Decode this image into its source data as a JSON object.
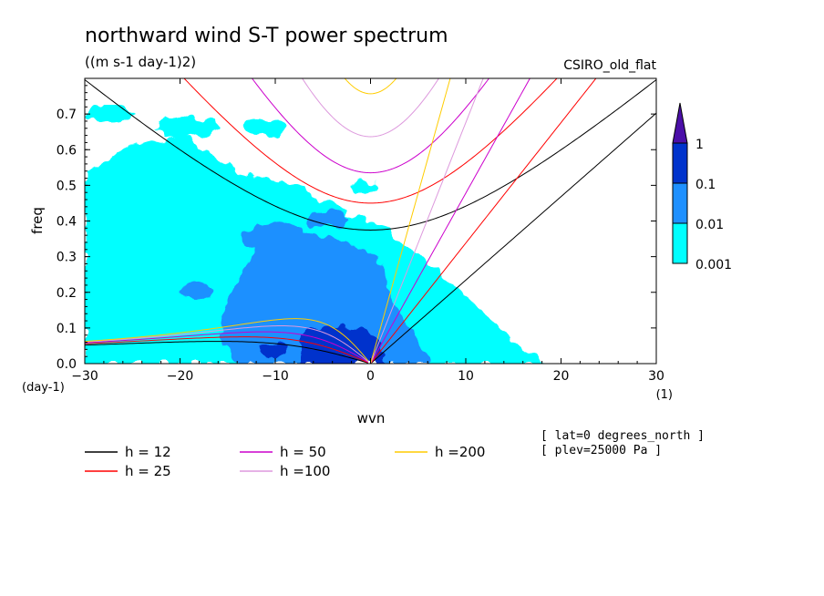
{
  "chart_data": {
    "type": "heatmap",
    "title": "northward wind S-T power spectrum",
    "units_label": "((m s-1 day-1)2)",
    "model_label": "CSIRO_old_flat",
    "xlabel": "wvn",
    "ylabel": "freq",
    "x_unit_label": "(1)",
    "y_unit_label": "(day-1)",
    "xlim": [
      -30,
      30
    ],
    "ylim": [
      0,
      0.8
    ],
    "x_ticks": [
      -30,
      -20,
      -10,
      0,
      10,
      20,
      30
    ],
    "x_tick_labels": [
      "-30",
      "-20",
      "-10",
      "0",
      "10",
      "20",
      "30"
    ],
    "y_ticks": [
      0,
      0.1,
      0.2,
      0.3,
      0.4,
      0.5,
      0.6,
      0.7
    ],
    "y_tick_labels": [
      "0.0",
      "0.1",
      "0.2",
      "0.3",
      "0.4",
      "0.5",
      "0.6",
      "0.7"
    ],
    "color_levels": [
      "0.001",
      "0.01",
      "0.1",
      "1"
    ],
    "color_fills": [
      "#00ffff",
      "#1e90ff",
      "#0033cc",
      "#4b0fa8"
    ],
    "meta_lines": [
      "[ lat=0 degrees_north ]",
      "[ plev=25000 Pa ]"
    ],
    "dispersion_curves": [
      {
        "label": "h = 12",
        "h": 12,
        "color": "#000000"
      },
      {
        "label": "h = 25",
        "h": 25,
        "color": "#ff0000"
      },
      {
        "label": "h = 50",
        "h": 50,
        "color": "#cc00cc"
      },
      {
        "label": "h =100",
        "h": 100,
        "color": "#dd99dd"
      },
      {
        "label": "h =200",
        "h": 200,
        "color": "#ffcc00"
      }
    ],
    "power_regions": [
      {
        "level": "0.001",
        "x_range": [
          -30,
          17
        ],
        "freq_range": [
          0.0,
          0.62
        ],
        "note": "broad cyan region, largest for westward wavenumbers"
      },
      {
        "level": "0.01",
        "x_range": [
          -18,
          5
        ],
        "freq_range": [
          0.0,
          0.4
        ]
      },
      {
        "level": "0.1",
        "x_range": [
          -6,
          3
        ],
        "freq_range": [
          0.0,
          0.06
        ]
      }
    ]
  }
}
